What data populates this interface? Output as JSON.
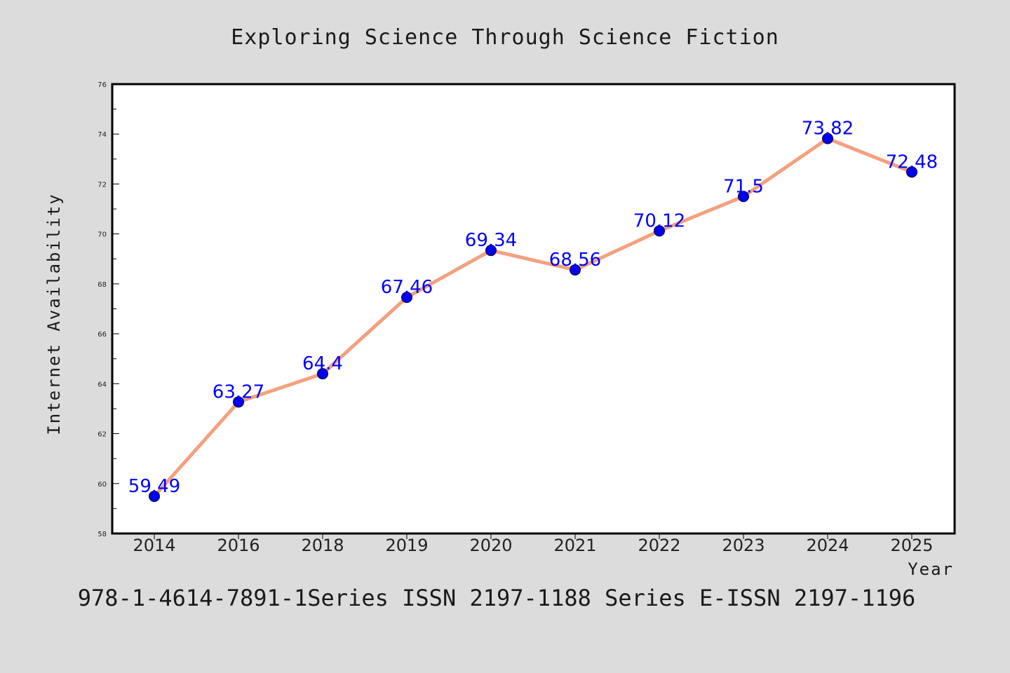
{
  "footer": {
    "text": "978-1-4614-7891-1Series ISSN 2197-1188 Series E-ISSN 2197-1196"
  },
  "colors": {
    "background": "#dcdcdc",
    "plot_area": "#ffffff",
    "line": "#f4a07f",
    "marker": "#0000ee",
    "data_label": "#0000ff"
  },
  "chart_data": {
    "type": "line",
    "title": "Exploring Science Through Science Fiction",
    "xlabel": "Year",
    "ylabel": "Internet Availability",
    "categories": [
      "2014",
      "2016",
      "2018",
      "2019",
      "2020",
      "2021",
      "2022",
      "2023",
      "2024",
      "2025"
    ],
    "series": [
      {
        "values": [
          59.49,
          63.27,
          64.4,
          67.46,
          69.34,
          68.56,
          70.12,
          71.5,
          73.82,
          72.48
        ],
        "data_labels": [
          "59.49",
          "63.27",
          "64.4",
          "67.46",
          "69.34",
          "68.56",
          "70.12",
          "71.5",
          "73.82",
          "72.48"
        ]
      }
    ],
    "ylim": [
      58,
      76
    ],
    "yticks": [
      "58",
      "60",
      "62",
      "64",
      "66",
      "68",
      "70",
      "72",
      "74",
      "76"
    ],
    "grid": false,
    "legend": "none"
  }
}
